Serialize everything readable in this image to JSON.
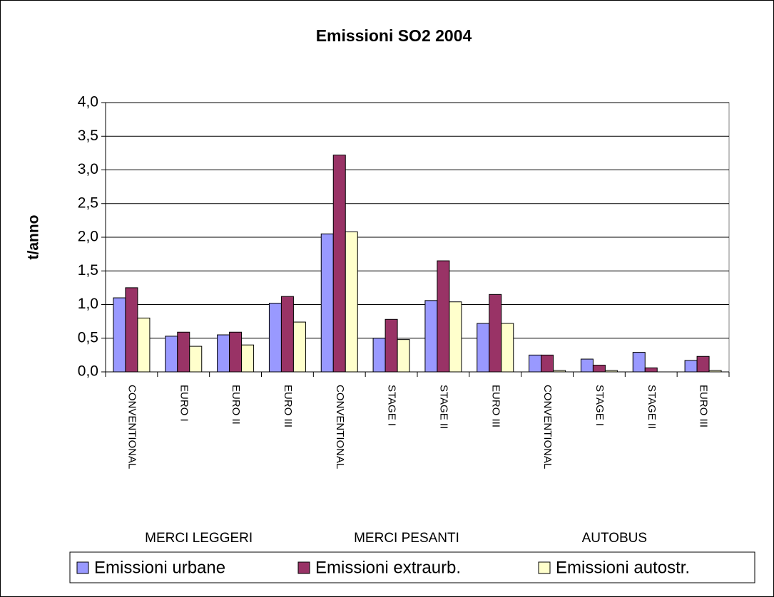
{
  "chart_data": {
    "type": "bar",
    "title": "Emissioni SO2 2004",
    "y_label": "t/anno",
    "categories": [
      "CONVENTIONAL",
      "EURO I",
      "EURO II",
      "EURO III",
      "CONVENTIONAL",
      "STAGE I",
      "STAGE II",
      "EURO III",
      "CONVENTIONAL",
      "STAGE I",
      "STAGE II",
      "EURO III"
    ],
    "groups": [
      "MERCI LEGGERI",
      "MERCI PESANTI",
      "AUTOBUS"
    ],
    "series": [
      {
        "name": "Emissioni urbane",
        "color": "#9999ff",
        "values": [
          1.1,
          0.53,
          0.55,
          1.02,
          2.05,
          0.5,
          1.06,
          0.72,
          0.25,
          0.19,
          0.29,
          0.17
        ]
      },
      {
        "name": "Emissioni extraurb.",
        "color": "#993366",
        "values": [
          1.25,
          0.59,
          0.59,
          1.12,
          3.22,
          0.78,
          1.65,
          1.15,
          0.25,
          0.1,
          0.06,
          0.23
        ]
      },
      {
        "name": "Emissioni autostr.",
        "color": "#ffffcc",
        "values": [
          0.8,
          0.38,
          0.4,
          0.74,
          2.08,
          0.48,
          1.04,
          0.72,
          0.02,
          0.02,
          0,
          0.02
        ]
      }
    ],
    "ylim": [
      0,
      4
    ],
    "yticks": [
      {
        "value": 0,
        "label": "0,0"
      },
      {
        "value": 0.5,
        "label": "0,5"
      },
      {
        "value": 1,
        "label": "1,0"
      },
      {
        "value": 1.5,
        "label": "1,5"
      },
      {
        "value": 2,
        "label": "2,0"
      },
      {
        "value": 2.5,
        "label": "2,5"
      },
      {
        "value": 3,
        "label": "3,0"
      },
      {
        "value": 3.5,
        "label": "3,5"
      },
      {
        "value": 4,
        "label": "4,0"
      }
    ],
    "grid": true,
    "legend": "bottom"
  }
}
